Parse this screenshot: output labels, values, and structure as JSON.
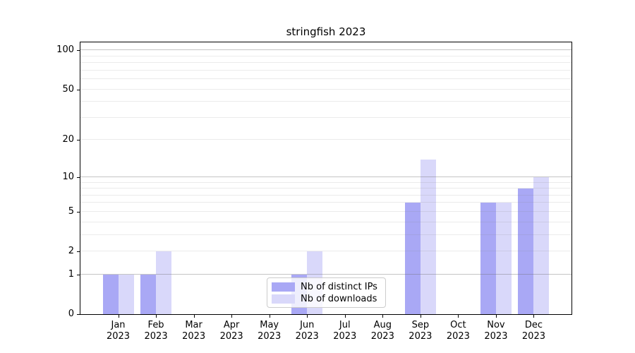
{
  "chart_data": {
    "type": "bar",
    "title": "stringfish 2023",
    "categories": [
      "Jan 2023",
      "Feb 2023",
      "Mar 2023",
      "Apr 2023",
      "May 2023",
      "Jun 2023",
      "Jul 2023",
      "Aug 2023",
      "Sep 2023",
      "Oct 2023",
      "Nov 2023",
      "Dec 2023"
    ],
    "month_labels": [
      "Jan",
      "Feb",
      "Mar",
      "Apr",
      "May",
      "Jun",
      "Jul",
      "Aug",
      "Sep",
      "Oct",
      "Nov",
      "Dec"
    ],
    "year_label": "2023",
    "series": [
      {
        "name": "Nb of distinct IPs",
        "color": "#a9a8f5",
        "values": [
          1,
          1,
          0,
          0,
          0,
          1,
          0,
          0,
          6,
          0,
          6,
          8
        ]
      },
      {
        "name": "Nb of downloads",
        "color": "#d9d8fa",
        "values": [
          1,
          2,
          0,
          0,
          0,
          2,
          0,
          0,
          14,
          0,
          6,
          10
        ]
      }
    ],
    "yscale": "log1p",
    "ylim": [
      0,
      115
    ],
    "yticks": [
      0,
      1,
      2,
      5,
      10,
      20,
      50,
      100
    ],
    "grid_major": [
      1,
      10,
      100
    ],
    "grid_minor": [
      2,
      3,
      4,
      5,
      6,
      7,
      8,
      9,
      20,
      30,
      40,
      50,
      60,
      70,
      80,
      90
    ],
    "legend_position": "lower center",
    "grid_on": true,
    "xlabel": "",
    "ylabel": ""
  }
}
